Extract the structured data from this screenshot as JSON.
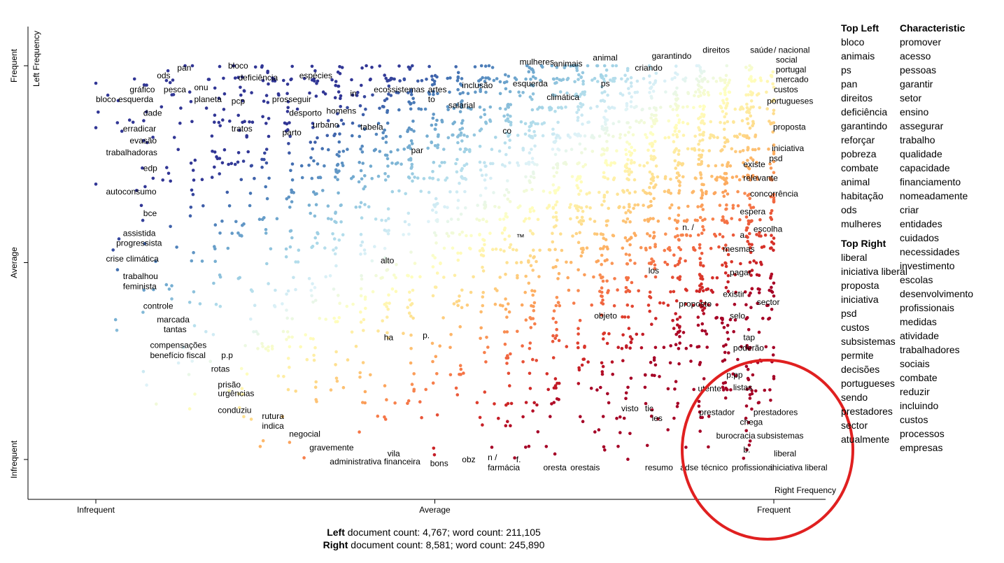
{
  "chart_data": {
    "type": "scatter",
    "x_axis": {
      "label": "Right Frequency",
      "ticks": [
        "Infrequent",
        "Average",
        "Frequent"
      ]
    },
    "y_axis": {
      "label": "Left Frequency",
      "ticks": [
        "Infrequent",
        "Average",
        "Frequent"
      ]
    },
    "xlim": [
      0,
      1
    ],
    "ylim": [
      0,
      1
    ],
    "color_scale": [
      "#313695",
      "#4575b4",
      "#74add1",
      "#abd9e9",
      "#e0f3f8",
      "#ffffbf",
      "#fee090",
      "#fdae61",
      "#f46d43",
      "#d73027",
      "#a50026"
    ],
    "labels": [
      {
        "text": "pan",
        "x": 0.12,
        "y": 0.995
      },
      {
        "text": "bloco",
        "x": 0.195,
        "y": 1.0
      },
      {
        "text": "ods",
        "x": 0.09,
        "y": 0.975
      },
      {
        "text": "onu",
        "x": 0.145,
        "y": 0.945
      },
      {
        "text": "deficiência",
        "x": 0.21,
        "y": 0.97
      },
      {
        "text": "gráfico",
        "x": 0.05,
        "y": 0.94
      },
      {
        "text": "pesca",
        "x": 0.1,
        "y": 0.94
      },
      {
        "text": "planeta",
        "x": 0.145,
        "y": 0.915
      },
      {
        "text": "pcp",
        "x": 0.2,
        "y": 0.91
      },
      {
        "text": "bloco esquerda",
        "x": 0.0,
        "y": 0.915
      },
      {
        "text": "dade",
        "x": 0.07,
        "y": 0.88
      },
      {
        "text": "erradicar",
        "x": 0.04,
        "y": 0.84
      },
      {
        "text": "tratos",
        "x": 0.2,
        "y": 0.84
      },
      {
        "text": "evasão",
        "x": 0.05,
        "y": 0.81
      },
      {
        "text": "trabalhadoras",
        "x": 0.015,
        "y": 0.78
      },
      {
        "text": "edp",
        "x": 0.07,
        "y": 0.74
      },
      {
        "text": "autoconsumo",
        "x": 0.015,
        "y": 0.68
      },
      {
        "text": "bce",
        "x": 0.07,
        "y": 0.625
      },
      {
        "text": "assistida",
        "x": 0.04,
        "y": 0.575
      },
      {
        "text": "progressista",
        "x": 0.03,
        "y": 0.55
      },
      {
        "text": "crise climática",
        "x": 0.015,
        "y": 0.51
      },
      {
        "text": "trabalhou",
        "x": 0.04,
        "y": 0.465
      },
      {
        "text": "feminista",
        "x": 0.04,
        "y": 0.44
      },
      {
        "text": "controle",
        "x": 0.07,
        "y": 0.39
      },
      {
        "text": "marcada",
        "x": 0.09,
        "y": 0.355
      },
      {
        "text": "tantas",
        "x": 0.1,
        "y": 0.33
      },
      {
        "text": "compensações",
        "x": 0.08,
        "y": 0.29
      },
      {
        "text": "benefício fiscal",
        "x": 0.08,
        "y": 0.265
      },
      {
        "text": "p.p",
        "x": 0.185,
        "y": 0.265
      },
      {
        "text": "rotas",
        "x": 0.17,
        "y": 0.23
      },
      {
        "text": "prisão",
        "x": 0.18,
        "y": 0.19
      },
      {
        "text": "urgências",
        "x": 0.18,
        "y": 0.168
      },
      {
        "text": "conduziu",
        "x": 0.18,
        "y": 0.125
      },
      {
        "text": "espécies",
        "x": 0.3,
        "y": 0.975
      },
      {
        "text": "prosseguir",
        "x": 0.26,
        "y": 0.915
      },
      {
        "text": "desporto",
        "x": 0.285,
        "y": 0.88
      },
      {
        "text": "homens",
        "x": 0.34,
        "y": 0.885
      },
      {
        "text": "urbano",
        "x": 0.32,
        "y": 0.85
      },
      {
        "text": "parto",
        "x": 0.275,
        "y": 0.83
      },
      {
        "text": "in",
        "x": 0.375,
        "y": 0.93
      },
      {
        "text": "ecossistemas",
        "x": 0.41,
        "y": 0.94
      },
      {
        "text": "tabela",
        "x": 0.39,
        "y": 0.845
      },
      {
        "text": "artes",
        "x": 0.49,
        "y": 0.94
      },
      {
        "text": "to",
        "x": 0.49,
        "y": 0.915
      },
      {
        "text": "inclusão",
        "x": 0.54,
        "y": 0.95
      },
      {
        "text": "salarial",
        "x": 0.52,
        "y": 0.9
      },
      {
        "text": "par",
        "x": 0.465,
        "y": 0.785
      },
      {
        "text": "mulheres",
        "x": 0.625,
        "y": 1.01
      },
      {
        "text": "animais",
        "x": 0.675,
        "y": 1.005
      },
      {
        "text": "animal",
        "x": 0.733,
        "y": 1.02
      },
      {
        "text": "esquerda",
        "x": 0.615,
        "y": 0.955
      },
      {
        "text": "ps",
        "x": 0.745,
        "y": 0.955
      },
      {
        "text": "climática",
        "x": 0.665,
        "y": 0.92
      },
      {
        "text": "co",
        "x": 0.6,
        "y": 0.835
      },
      {
        "text": "garantindo",
        "x": 0.82,
        "y": 1.025
      },
      {
        "text": "criando",
        "x": 0.795,
        "y": 0.995
      },
      {
        "text": "direitos",
        "x": 0.895,
        "y": 1.04
      },
      {
        "text": "saúde",
        "x": 0.965,
        "y": 1.04
      },
      {
        "text": "/ nacional",
        "x": 1.0,
        "y": 1.04
      },
      {
        "text": "social",
        "x": 1.003,
        "y": 1.015
      },
      {
        "text": "portugal",
        "x": 1.003,
        "y": 0.99
      },
      {
        "text": "mercado",
        "x": 1.003,
        "y": 0.965
      },
      {
        "text": "custos",
        "x": 1.0,
        "y": 0.94
      },
      {
        "text": "portugueses",
        "x": 0.99,
        "y": 0.91
      },
      {
        "text": "proposta",
        "x": 0.999,
        "y": 0.845
      },
      {
        "text": "iniciativa",
        "x": 0.997,
        "y": 0.79
      },
      {
        "text": "psd",
        "x": 0.993,
        "y": 0.765
      },
      {
        "text": "existe",
        "x": 0.955,
        "y": 0.75
      },
      {
        "text": "relevante",
        "x": 0.955,
        "y": 0.715
      },
      {
        "text": "concorrência",
        "x": 0.965,
        "y": 0.675
      },
      {
        "text": "espera",
        "x": 0.95,
        "y": 0.63
      },
      {
        "text": "escolha",
        "x": 0.97,
        "y": 0.585
      },
      {
        "text": "n. /",
        "x": 0.865,
        "y": 0.59
      },
      {
        "text": "a.",
        "x": 0.95,
        "y": 0.57
      },
      {
        "text": "mesmas",
        "x": 0.925,
        "y": 0.535
      },
      {
        "text": "™",
        "x": 0.62,
        "y": 0.565
      },
      {
        "text": "alto",
        "x": 0.42,
        "y": 0.505
      },
      {
        "text": "los",
        "x": 0.815,
        "y": 0.48
      },
      {
        "text": "pagar",
        "x": 0.935,
        "y": 0.475
      },
      {
        "text": "existir",
        "x": 0.925,
        "y": 0.42
      },
      {
        "text": "proposto",
        "x": 0.86,
        "y": 0.395
      },
      {
        "text": "sector",
        "x": 0.975,
        "y": 0.4
      },
      {
        "text": "objeto",
        "x": 0.735,
        "y": 0.365
      },
      {
        "text": "selo",
        "x": 0.935,
        "y": 0.365
      },
      {
        "text": "ha",
        "x": 0.425,
        "y": 0.31
      },
      {
        "text": "p.",
        "x": 0.482,
        "y": 0.315
      },
      {
        "text": "tap",
        "x": 0.955,
        "y": 0.31
      },
      {
        "text": "poderão",
        "x": 0.94,
        "y": 0.283
      },
      {
        "text": "p.pp",
        "x": 0.93,
        "y": 0.215
      },
      {
        "text": "listas",
        "x": 0.94,
        "y": 0.183
      },
      {
        "text": "utente",
        "x": 0.888,
        "y": 0.18
      },
      {
        "text": "visto",
        "x": 0.775,
        "y": 0.13
      },
      {
        "text": "tic",
        "x": 0.81,
        "y": 0.13
      },
      {
        "text": "ies",
        "x": 0.82,
        "y": 0.105
      },
      {
        "text": "prestador",
        "x": 0.89,
        "y": 0.12
      },
      {
        "text": "prestadores",
        "x": 0.97,
        "y": 0.12
      },
      {
        "text": "chega",
        "x": 0.95,
        "y": 0.095
      },
      {
        "text": "burocracia",
        "x": 0.915,
        "y": 0.06
      },
      {
        "text": "subsistemas",
        "x": 0.975,
        "y": 0.06
      },
      {
        "text": "b.",
        "x": 0.955,
        "y": 0.025
      },
      {
        "text": "liberal",
        "x": 1.0,
        "y": 0.015
      },
      {
        "text": "técnico",
        "x": 0.893,
        "y": -0.02
      },
      {
        "text": "profissional",
        "x": 0.938,
        "y": -0.02
      },
      {
        "text": "iniciativa liberal",
        "x": 0.995,
        "y": -0.02
      },
      {
        "text": "resumo",
        "x": 0.81,
        "y": -0.02
      },
      {
        "text": "adse",
        "x": 0.862,
        "y": -0.02
      },
      {
        "text": "rutura",
        "x": 0.245,
        "y": 0.11
      },
      {
        "text": "indica",
        "x": 0.245,
        "y": 0.085
      },
      {
        "text": "negocial",
        "x": 0.285,
        "y": 0.065
      },
      {
        "text": "gravemente",
        "x": 0.315,
        "y": 0.03
      },
      {
        "text": "vila",
        "x": 0.43,
        "y": 0.015
      },
      {
        "text": "administrativa",
        "x": 0.345,
        "y": -0.005
      },
      {
        "text": "financeira",
        "x": 0.425,
        "y": -0.005
      },
      {
        "text": "bons",
        "x": 0.493,
        "y": -0.01
      },
      {
        "text": "obz",
        "x": 0.54,
        "y": 0.0
      },
      {
        "text": "n /",
        "x": 0.578,
        "y": 0.005
      },
      {
        "text": "farmácia",
        "x": 0.578,
        "y": -0.02
      },
      {
        "text": "f.",
        "x": 0.62,
        "y": 0.0
      },
      {
        "text": "oresta",
        "x": 0.66,
        "y": -0.02
      },
      {
        "text": "orestais",
        "x": 0.7,
        "y": -0.02
      }
    ]
  },
  "side_panel": {
    "top_left": {
      "heading": "Top Left",
      "items": [
        "bloco",
        "animais",
        "ps",
        "pan",
        "direitos",
        "deficiência",
        "garantindo",
        "reforçar",
        "pobreza",
        "combate",
        "animal",
        "habitação",
        "ods",
        "mulheres"
      ]
    },
    "top_right": {
      "heading": "Top Right",
      "items": [
        "liberal",
        "iniciativa liberal",
        "proposta",
        "iniciativa",
        "psd",
        "custos",
        "subsistemas",
        "permite",
        "decisões",
        "portugueses",
        "sendo",
        "prestadores",
        "sector",
        "atualmente"
      ]
    },
    "characteristic": {
      "heading": "Characteristic",
      "items": [
        "promover",
        "acesso",
        "pessoas",
        "garantir",
        "setor",
        "ensino",
        "assegurar",
        "trabalho",
        "qualidade",
        "capacidade",
        "financiamento",
        "nomeadamente",
        "criar",
        "entidades",
        "cuidados",
        "necessidades",
        "investimento",
        "escolas",
        "desenvolvimento",
        "profissionais",
        "medidas",
        "atividade",
        "trabalhadores",
        "sociais",
        "combate",
        "reduzir",
        "incluindo",
        "custos",
        "processos",
        "empresas"
      ]
    }
  },
  "footer": {
    "left_bold": "Left",
    "left_text": " document count: 4,767; word count: 211,105",
    "right_bold": "Right",
    "right_text": " document count: 8,581; word count: 245,890"
  },
  "highlight_circle_color": "#e02020"
}
